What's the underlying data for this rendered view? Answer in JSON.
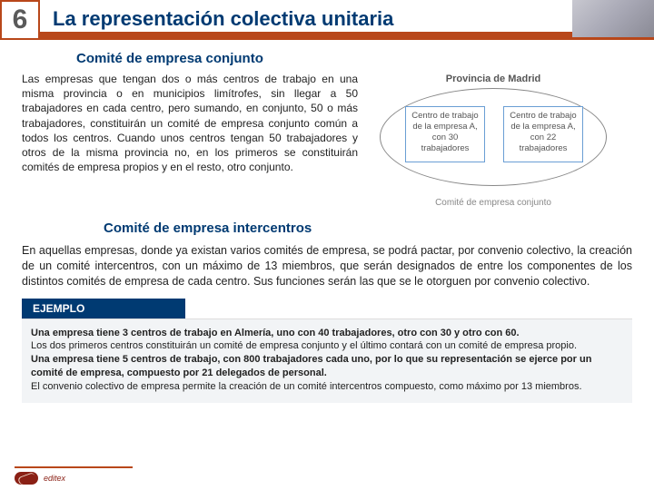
{
  "header": {
    "number": "6",
    "title": "La representación colectiva unitaria"
  },
  "section1": {
    "heading": "Comité de empresa conjunto",
    "text": "Las empresas que tengan dos o más centros de trabajo en una misma provincia o en municipios limítrofes, sin llegar a 50 trabajadores en cada centro, pero sumando, en conjunto, 50 o más trabajadores, constituirán un comité de empresa conjunto común a todos los centros. Cuando unos centros tengan 50 trabajadores y otros de la misma provincia no, en los primeros se constituirán comités de empresa propios y en el resto, otro conjunto."
  },
  "diagram": {
    "province": "Provincia de Madrid",
    "boxA": "Centro de trabajo de la empresa A, con 30 trabajadores",
    "boxB": "Centro de trabajo de la empresa A, con 22 trabajadores",
    "bottom": "Comité de empresa conjunto"
  },
  "section2": {
    "heading": "Comité de empresa intercentros",
    "text": "En aquellas empresas, donde ya existan varios comités de empresa, se podrá pactar, por convenio colectivo, la creación de un comité intercentros, con un máximo de 13 miembros, que serán designados de entre los componentes de los distintos comités de empresa de cada centro. Sus funciones serán las que se le otorguen por convenio colectivo."
  },
  "ejemplo": {
    "label": "EJEMPLO",
    "line1": "Una empresa tiene 3 centros de trabajo en Almería, uno con 40 trabajadores, otro con 30 y otro con 60.",
    "line2": "Los dos primeros centros constituirán un comité de empresa conjunto y el último contará con un comité de empresa propio.",
    "line3": "Una empresa tiene 5 centros de trabajo, con 800 trabajadores cada uno, por lo que su representación se ejerce por un comité de empresa, compuesto por 21 delegados de personal.",
    "line4": "El convenio colectivo de empresa permite la creación de un comité intercentros compuesto, como máximo por 13 miembros."
  },
  "footer": {
    "brand": "editex"
  }
}
